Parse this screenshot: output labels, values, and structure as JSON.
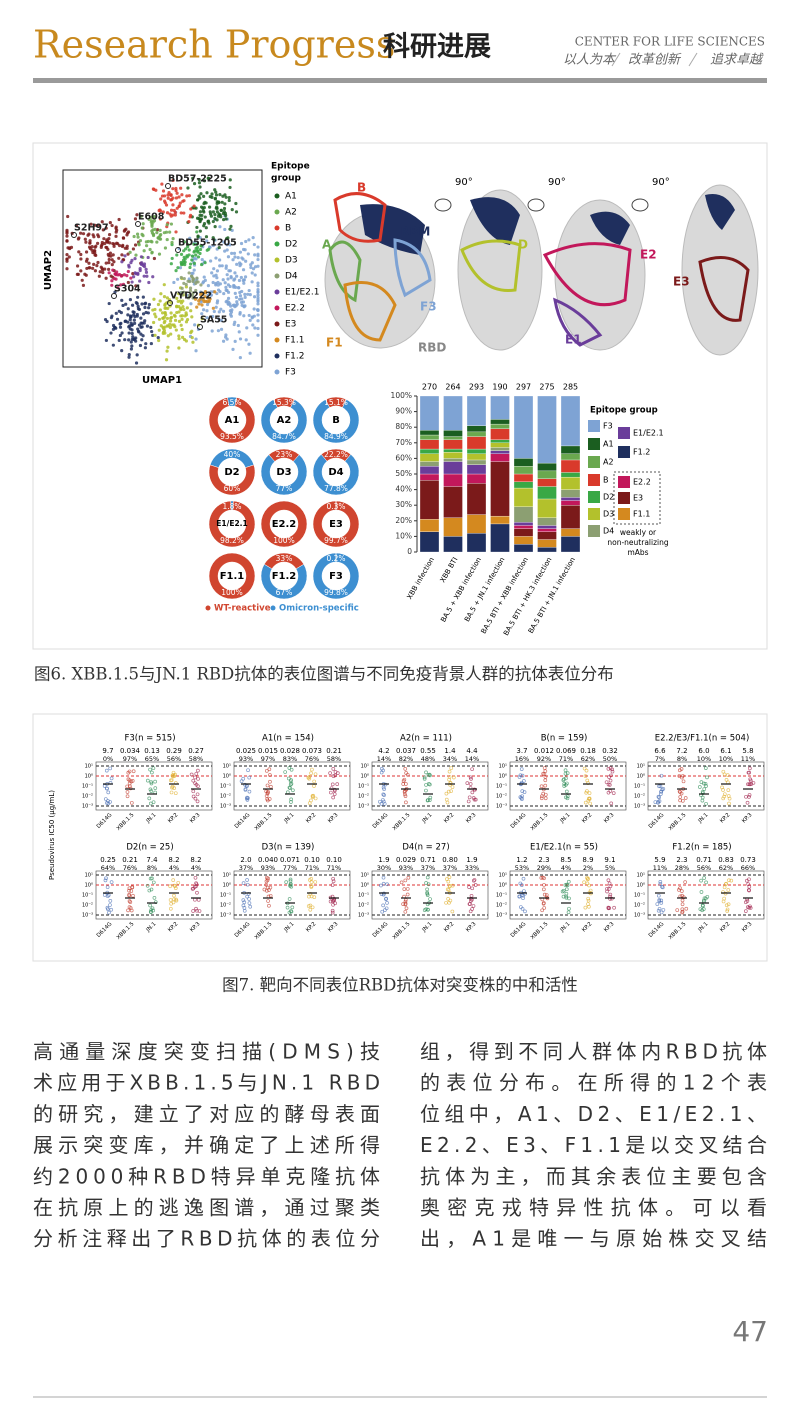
{
  "header": {
    "title_en": "Research Progress",
    "title_cn": "科研进展",
    "org": "CENTER FOR LIFE SCIENCES",
    "mottos": [
      "以人为本",
      "改革创新",
      "追求卓越"
    ]
  },
  "figure6": {
    "caption": "图6. XBB.1.5与JN.1 RBD抗体的表位图谱与不同免疫背景人群的抗体表位分布",
    "umap": {
      "xlabel": "UMAP1",
      "ylabel": "UMAP2",
      "antibodies": [
        "BD57-2225",
        "S2H97",
        "E608",
        "BD55-1205",
        "S304",
        "VYD222",
        "SA55"
      ]
    },
    "legend_title": [
      "Epitope",
      "group"
    ],
    "groups": [
      {
        "name": "A1",
        "color": "#1b5e20"
      },
      {
        "name": "A2",
        "color": "#6aa84f"
      },
      {
        "name": "B",
        "color": "#d93a2b"
      },
      {
        "name": "D2",
        "color": "#39a845"
      },
      {
        "name": "D3",
        "color": "#b3c12c"
      },
      {
        "name": "D4",
        "color": "#8c9f72"
      },
      {
        "name": "E1/E2.1",
        "color": "#6a3d9a"
      },
      {
        "name": "E2.2",
        "color": "#c2185b"
      },
      {
        "name": "E3",
        "color": "#7b1a1a"
      },
      {
        "name": "F1.1",
        "color": "#d4891f"
      },
      {
        "name": "F1.2",
        "color": "#1f2f5e"
      },
      {
        "name": "F3",
        "color": "#7ea3d4"
      }
    ],
    "structure": {
      "rotations": [
        "90°",
        "90°",
        "90°"
      ],
      "labels": [
        "B",
        "RBM",
        "A",
        "F3",
        "F1",
        "RBD",
        "D",
        "E2",
        "E1",
        "E3"
      ]
    },
    "donuts": [
      {
        "name": "A1",
        "slices": [
          {
            "group": "omicron",
            "value": 6.5,
            "label": "6.5%"
          },
          {
            "group": "wt",
            "value": 93.5,
            "label": "93.5%"
          }
        ]
      },
      {
        "name": "A2",
        "slices": [
          {
            "group": "wt",
            "value": 15.3,
            "label": "15.3%"
          },
          {
            "group": "omicron",
            "value": 84.7,
            "label": "84.7%"
          }
        ]
      },
      {
        "name": "B",
        "slices": [
          {
            "group": "wt",
            "value": 15.1,
            "label": "15.1%"
          },
          {
            "group": "omicron",
            "value": 84.9,
            "label": "84.9%"
          }
        ]
      },
      {
        "name": "D2",
        "slices": [
          {
            "group": "omicron",
            "value": 40,
            "label": "40%"
          },
          {
            "group": "wt",
            "value": 60,
            "label": "60%"
          }
        ]
      },
      {
        "name": "D3",
        "slices": [
          {
            "group": "wt",
            "value": 23,
            "label": "23%"
          },
          {
            "group": "omicron",
            "value": 77,
            "label": "77%"
          }
        ]
      },
      {
        "name": "D4",
        "slices": [
          {
            "group": "wt",
            "value": 22.2,
            "label": "22.2%"
          },
          {
            "group": "omicron",
            "value": 77.8,
            "label": "77.8%"
          }
        ]
      },
      {
        "name": "E1/E2.1",
        "slices": [
          {
            "group": "omicron",
            "value": 1.8,
            "label": "1.8%"
          },
          {
            "group": "wt",
            "value": 98.2,
            "label": "98.2%"
          }
        ]
      },
      {
        "name": "E2.2",
        "slices": [
          {
            "group": "wt",
            "value": 100,
            "label": "100%"
          }
        ]
      },
      {
        "name": "E3",
        "slices": [
          {
            "group": "omicron",
            "value": 0.3,
            "label": "0.3%"
          },
          {
            "group": "wt",
            "value": 99.7,
            "label": "99.7%"
          }
        ]
      },
      {
        "name": "F1.1",
        "slices": [
          {
            "group": "wt",
            "value": 100,
            "label": "100%"
          }
        ]
      },
      {
        "name": "F1.2",
        "slices": [
          {
            "group": "wt",
            "value": 33,
            "label": "33%"
          },
          {
            "group": "omicron",
            "value": 67,
            "label": "67%"
          }
        ]
      },
      {
        "name": "F3",
        "slices": [
          {
            "group": "wt",
            "value": 0.2,
            "label": "0.2%"
          },
          {
            "group": "omicron",
            "value": 99.8,
            "label": "99.8%"
          }
        ]
      }
    ],
    "donut_legend": [
      {
        "group": "wt",
        "label": "WT-reactive",
        "color": "#d0452f"
      },
      {
        "group": "omicron",
        "label": "Omicron-specific",
        "color": "#3d8fd1"
      }
    ],
    "composition": {
      "ylim": [
        0,
        100
      ],
      "yticks": [
        {
          "value": 0,
          "label": "0"
        },
        {
          "value": 10,
          "label": "10%"
        },
        {
          "value": 20,
          "label": "20%"
        },
        {
          "value": 30,
          "label": "30%"
        },
        {
          "value": 40,
          "label": "40%"
        },
        {
          "value": 50,
          "label": "50%"
        },
        {
          "value": 60,
          "label": "60%"
        },
        {
          "value": 70,
          "label": "70%"
        },
        {
          "value": 80,
          "label": "80%"
        },
        {
          "value": 90,
          "label": "90%"
        },
        {
          "value": 100,
          "label": "100%"
        }
      ],
      "counts": [
        270,
        264,
        293,
        190,
        297,
        275,
        285
      ],
      "categories": [
        "XBB infection",
        "XBB BTI",
        "BA.5 + XBB infection",
        "BA.5 + JN.1 infection",
        "BA.5 BTI + XBB infection",
        "BA.5 BTI + HK.3 infection",
        "BA.5 BTI + JN.1 infection"
      ],
      "legend_title": "Epitope group",
      "weak_note": [
        "weakly or",
        "non-neutralizing",
        "mAbs"
      ],
      "series": [
        {
          "name": "F1.2",
          "color": "#1f2f5e",
          "values": [
            13,
            10,
            12,
            18,
            5,
            3,
            10
          ]
        },
        {
          "name": "F1.1",
          "color": "#d4891f",
          "values": [
            8,
            12,
            12,
            5,
            5,
            5,
            5
          ]
        },
        {
          "name": "E3",
          "color": "#7b1a1a",
          "values": [
            25,
            20,
            20,
            35,
            5,
            5,
            15
          ]
        },
        {
          "name": "E2.2",
          "color": "#c2185b",
          "values": [
            4,
            8,
            6,
            5,
            2,
            2,
            3
          ]
        },
        {
          "name": "E1/E2.1",
          "color": "#6a3d9a",
          "values": [
            5,
            8,
            6,
            2,
            2,
            2,
            2
          ]
        },
        {
          "name": "D4",
          "color": "#8c9f72",
          "values": [
            3,
            2,
            3,
            2,
            10,
            5,
            5
          ]
        },
        {
          "name": "D3",
          "color": "#b3c12c",
          "values": [
            5,
            4,
            4,
            3,
            12,
            12,
            8
          ]
        },
        {
          "name": "D2",
          "color": "#39a845",
          "values": [
            3,
            2,
            3,
            2,
            4,
            8,
            3
          ]
        },
        {
          "name": "B",
          "color": "#d93a2b",
          "values": [
            6,
            6,
            8,
            7,
            5,
            5,
            8
          ]
        },
        {
          "name": "A2",
          "color": "#6aa84f",
          "values": [
            3,
            2,
            3,
            3,
            5,
            5,
            4
          ]
        },
        {
          "name": "A1",
          "color": "#1b5e20",
          "values": [
            3,
            4,
            4,
            3,
            5,
            5,
            5
          ]
        },
        {
          "name": "F3",
          "color": "#7ea3d4",
          "values": [
            22,
            22,
            19,
            15,
            40,
            43,
            32
          ]
        }
      ]
    }
  },
  "figure7": {
    "caption": "图7. 靶向不同表位RBD抗体对突变株的中和活性",
    "ylabel": "Pseudovirus IC50 (μg/mL)",
    "yticks": [
      "10¹",
      "10⁰",
      "10⁻¹",
      "10⁻²",
      "10⁻³"
    ],
    "variants": [
      "D614G",
      "XBB.1.5",
      "JN.1",
      "KP.2",
      "KP.3"
    ],
    "panels": [
      {
        "title": "F3(n = 515)",
        "ic50": [
          "9.7",
          "0.034",
          "0.13",
          "0.29",
          "0.27"
        ],
        "pct": [
          "0%",
          "97%",
          "65%",
          "56%",
          "58%"
        ]
      },
      {
        "title": "A1(n = 154)",
        "ic50": [
          "0.025",
          "0.015",
          "0.028",
          "0.073",
          "0.21"
        ],
        "pct": [
          "93%",
          "97%",
          "83%",
          "76%",
          "58%"
        ]
      },
      {
        "title": "A2(n = 111)",
        "ic50": [
          "4.2",
          "0.037",
          "0.55",
          "1.4",
          "4.4"
        ],
        "pct": [
          "14%",
          "82%",
          "48%",
          "34%",
          "14%"
        ]
      },
      {
        "title": "B(n = 159)",
        "ic50": [
          "3.7",
          "0.012",
          "0.069",
          "0.18",
          "0.32"
        ],
        "pct": [
          "16%",
          "92%",
          "71%",
          "62%",
          "50%"
        ]
      },
      {
        "title": "E2.2/E3/F1.1(n = 504)",
        "ic50": [
          "6.6",
          "7.2",
          "6.0",
          "6.1",
          "5.8"
        ],
        "pct": [
          "7%",
          "8%",
          "10%",
          "10%",
          "11%"
        ]
      },
      {
        "title": "D2(n = 25)",
        "ic50": [
          "0.25",
          "0.21",
          "7.4",
          "8.2",
          "8.2"
        ],
        "pct": [
          "64%",
          "76%",
          "8%",
          "4%",
          "4%"
        ]
      },
      {
        "title": "D3(n = 139)",
        "ic50": [
          "2.0",
          "0.040",
          "0.071",
          "0.10",
          "0.10"
        ],
        "pct": [
          "37%",
          "93%",
          "77%",
          "71%",
          "71%"
        ]
      },
      {
        "title": "D4(n = 27)",
        "ic50": [
          "1.9",
          "0.029",
          "0.71",
          "0.80",
          "1.9"
        ],
        "pct": [
          "30%",
          "93%",
          "37%",
          "37%",
          "33%"
        ]
      },
      {
        "title": "E1/E2.1(n = 55)",
        "ic50": [
          "1.2",
          "2.3",
          "8.5",
          "8.9",
          "9.1"
        ],
        "pct": [
          "53%",
          "29%",
          "4%",
          "2%",
          "5%"
        ]
      },
      {
        "title": "F1.2(n = 185)",
        "ic50": [
          "5.9",
          "2.3",
          "0.71",
          "0.83",
          "0.73"
        ],
        "pct": [
          "11%",
          "28%",
          "56%",
          "62%",
          "66%"
        ]
      }
    ]
  },
  "body": {
    "columns": [
      [
        "高通量深度突变扫描(DMS)技",
        "术应用于XBB.1.5与JN.1 RBD",
        "的研究，建立了对应的酵母表面",
        "展示突变库，并确定了上述所得",
        "约2000种RBD特异单克隆抗体",
        "在抗原上的逃逸图谱，通过聚类",
        "分析注释出了RBD抗体的表位分"
      ],
      [
        "组，得到不同人群体内RBD抗体",
        "的表位分布。在所得的12个表",
        "位组中，A1、D2、E1/E2.1、",
        "E2.2、E3、F1.1是以交叉结合",
        "抗体为主，而其余表位主要包含",
        "奥密克戎特异性抗体。可以看",
        "出，A1是唯一与原始株交叉结"
      ]
    ]
  },
  "footer": {
    "page_number": "47"
  }
}
